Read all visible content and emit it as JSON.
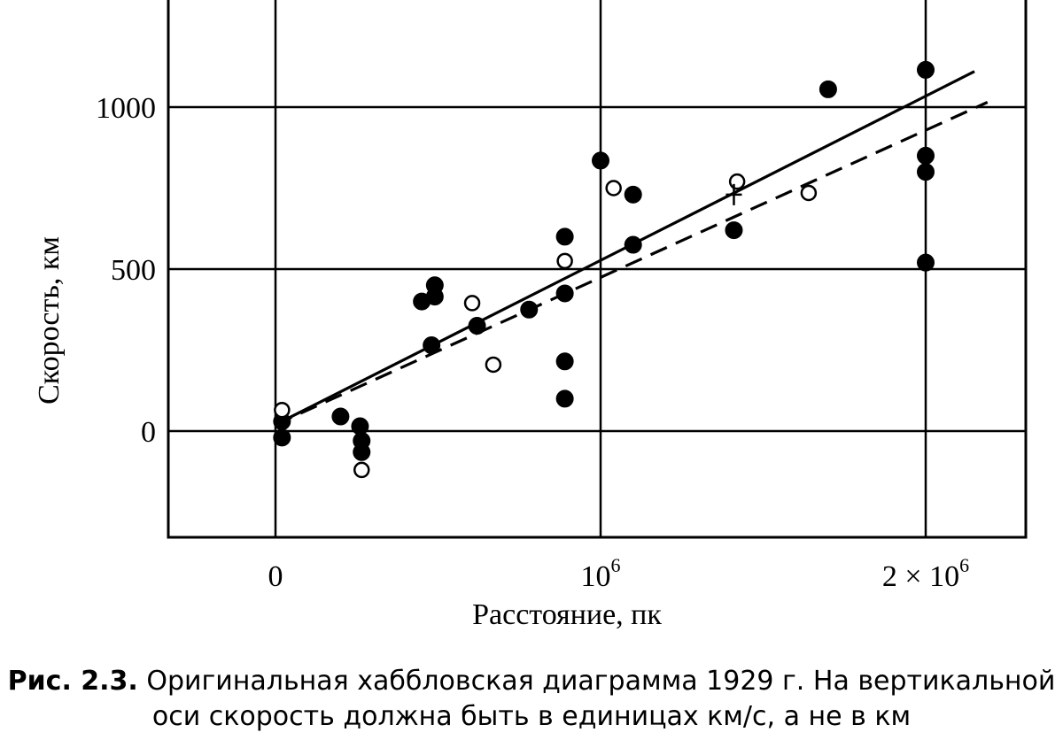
{
  "chart_data": {
    "type": "scatter",
    "title": "",
    "xlabel": "Расстояние, пк",
    "ylabel": "Скорость, км",
    "xlim": [
      -320000,
      2240000
    ],
    "ylim": [
      -330000,
      1330
    ],
    "x_ticks": [
      {
        "value": 0,
        "label": "0",
        "exp": ""
      },
      {
        "value": 1000000,
        "label": "10",
        "exp": "6"
      },
      {
        "value": 2000000,
        "label": "2 × 10",
        "exp": "6"
      }
    ],
    "y_ticks": [
      {
        "value": 0,
        "label": "0"
      },
      {
        "value": 500,
        "label": "500"
      },
      {
        "value": 1000,
        "label": "1000"
      }
    ],
    "grid": true,
    "series": [
      {
        "marker": "filled-circle",
        "points": [
          [
            20000,
            -20
          ],
          [
            20000,
            30
          ],
          [
            200000,
            45
          ],
          [
            260000,
            15
          ],
          [
            265000,
            -30
          ],
          [
            265000,
            -65
          ],
          [
            450000,
            400
          ],
          [
            480000,
            265
          ],
          [
            490000,
            415
          ],
          [
            490000,
            450
          ],
          [
            620000,
            325
          ],
          [
            780000,
            375
          ],
          [
            890000,
            600
          ],
          [
            890000,
            425
          ],
          [
            890000,
            215
          ],
          [
            890000,
            100
          ],
          [
            1000000,
            835
          ],
          [
            1100000,
            730
          ],
          [
            1100000,
            575
          ],
          [
            1410000,
            620
          ],
          [
            1700000,
            1055
          ],
          [
            2000000,
            1115
          ],
          [
            2000000,
            850
          ],
          [
            2000000,
            800
          ],
          [
            2000000,
            520
          ]
        ]
      },
      {
        "marker": "open-circle",
        "points": [
          [
            20000,
            65
          ],
          [
            265000,
            -120
          ],
          [
            605000,
            395
          ],
          [
            670000,
            205
          ],
          [
            890000,
            525
          ],
          [
            1040000,
            750
          ],
          [
            1420000,
            770
          ],
          [
            1640000,
            735
          ]
        ]
      },
      {
        "line": "solid",
        "points": [
          [
            0,
            20
          ],
          [
            2150000,
            1110
          ]
        ]
      },
      {
        "line": "dashed",
        "points": [
          [
            0,
            20
          ],
          [
            2190000,
            1015
          ]
        ]
      }
    ],
    "annotations": [
      {
        "marker": "plus",
        "x": 1410000,
        "y": 730
      }
    ]
  },
  "caption": {
    "label": "Рис. 2.3.",
    "line1": "Оригинальная хаббловская диаграмма 1929 г. На вертикальной",
    "line2": "оси скорость должна быть в единицах км/с, а не в км"
  }
}
